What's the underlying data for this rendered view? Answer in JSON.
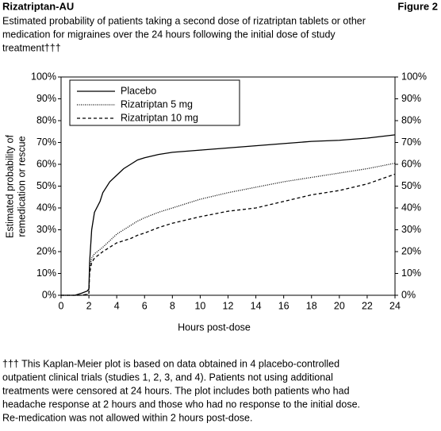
{
  "header": {
    "title": "Rizatriptan-AU",
    "figure": "Figure 2",
    "subtitle": [
      "Estimated probability of patients taking a second dose of rizatriptan tablets or other",
      "medication for migraines over the 24 hours following the initial dose of study",
      "treatment†††"
    ]
  },
  "chart_data": {
    "type": "line",
    "xlabel": "Hours post-dose",
    "ylabel": [
      "Estimated probability of",
      "remedication or rescue"
    ],
    "x": [
      0,
      1,
      1.5,
      1.9,
      2,
      2.05,
      2.2,
      2.4,
      2.8,
      3,
      3.5,
      4,
      4.5,
      5,
      5.5,
      6,
      7,
      8,
      10,
      12,
      14,
      16,
      18,
      20,
      22,
      24
    ],
    "series": [
      {
        "name": "Placebo",
        "color": "#000000",
        "dash": "solid",
        "values": [
          0,
          0,
          1,
          2,
          3,
          15,
          30,
          38,
          43,
          47,
          52,
          55,
          58,
          60,
          62,
          63,
          64.5,
          65.5,
          66.5,
          67.5,
          68.5,
          69.5,
          70.5,
          71,
          72,
          73.5
        ]
      },
      {
        "name": "Rizatriptan 5 mg",
        "color": "#000000",
        "dash": "dotted",
        "values": [
          0,
          0,
          0,
          0.5,
          1,
          12,
          17,
          19,
          21,
          22,
          25,
          28,
          30,
          32,
          34,
          35.5,
          38,
          40,
          44,
          47,
          49.5,
          52,
          54,
          56,
          58,
          60.5
        ]
      },
      {
        "name": "Rizatriptan 10 mg",
        "color": "#000000",
        "dash": "dashed",
        "values": [
          0,
          0,
          0,
          0.5,
          1,
          10,
          15,
          17,
          19,
          20,
          22,
          24,
          25,
          26,
          27.5,
          28.5,
          31,
          33,
          36,
          38.5,
          40,
          43,
          46,
          48,
          51,
          55.5
        ]
      }
    ],
    "xlim": [
      0,
      24
    ],
    "xticks": [
      0,
      2,
      4,
      6,
      8,
      10,
      12,
      14,
      16,
      18,
      20,
      22,
      24
    ],
    "ylim": [
      0,
      100
    ],
    "yticks": [
      {
        "value": 0,
        "label": "0%"
      },
      {
        "value": 10,
        "label": "10%"
      },
      {
        "value": 20,
        "label": "20%"
      },
      {
        "value": 30,
        "label": "30%"
      },
      {
        "value": 40,
        "label": "40%"
      },
      {
        "value": 50,
        "label": "50%"
      },
      {
        "value": 60,
        "label": "60%"
      },
      {
        "value": 70,
        "label": "70%"
      },
      {
        "value": 80,
        "label": "80%"
      },
      {
        "value": 90,
        "label": "90%"
      },
      {
        "value": 100,
        "label": "100%"
      }
    ],
    "y2lim": [
      0,
      100
    ],
    "y2ticks": [
      {
        "value": 0,
        "label": "0%"
      },
      {
        "value": 10,
        "label": "10%"
      },
      {
        "value": 20,
        "label": "20%"
      },
      {
        "value": 30,
        "label": "30%"
      },
      {
        "value": 40,
        "label": "40%"
      },
      {
        "value": 50,
        "label": "50%"
      },
      {
        "value": 60,
        "label": "60%"
      },
      {
        "value": 70,
        "label": "70%"
      },
      {
        "value": 80,
        "label": "80%"
      },
      {
        "value": 90,
        "label": "90%"
      },
      {
        "value": 100,
        "label": "100%"
      }
    ],
    "legend": "upper left"
  },
  "footnote": [
    "††† This Kaplan-Meier plot is based on data obtained in 4 placebo-controlled",
    "outpatient clinical trials (studies 1, 2, 3, and 4). Patients not using additional",
    "treatments were censored at 24 hours. The plot includes both patients who had",
    "headache response at 2 hours and those who had no response to the initial dose.",
    "Re-medication was not allowed within 2 hours post-dose."
  ]
}
